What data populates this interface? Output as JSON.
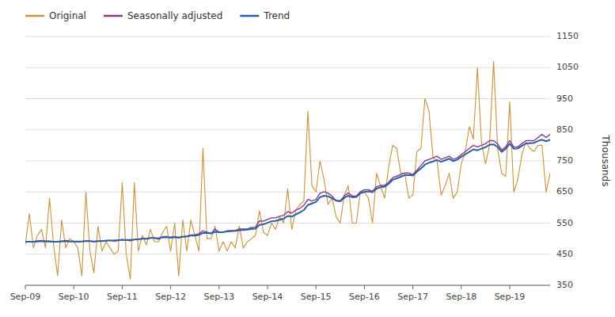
{
  "chart_data": {
    "type": "line",
    "ylabel": "Thousands",
    "categories": [
      "Sep-09",
      null,
      null,
      null,
      null,
      null,
      null,
      null,
      null,
      null,
      null,
      null,
      "Sep-10",
      null,
      null,
      null,
      null,
      null,
      null,
      null,
      null,
      null,
      null,
      null,
      "Sep-11",
      null,
      null,
      null,
      null,
      null,
      null,
      null,
      null,
      null,
      null,
      null,
      "Sep-12",
      null,
      null,
      null,
      null,
      null,
      null,
      null,
      null,
      null,
      null,
      null,
      "Sep-13",
      null,
      null,
      null,
      null,
      null,
      null,
      null,
      null,
      null,
      null,
      null,
      "Sep-14",
      null,
      null,
      null,
      null,
      null,
      null,
      null,
      null,
      null,
      null,
      null,
      "Sep-15",
      null,
      null,
      null,
      null,
      null,
      null,
      null,
      null,
      null,
      null,
      null,
      "Sep-16",
      null,
      null,
      null,
      null,
      null,
      null,
      null,
      null,
      null,
      null,
      null,
      "Sep-17",
      null,
      null,
      null,
      null,
      null,
      null,
      null,
      null,
      null,
      null,
      null,
      "Sep-18",
      null,
      null,
      null,
      null,
      null,
      null,
      null,
      null,
      null,
      null,
      null,
      "Sep-19",
      null,
      null,
      null,
      null,
      null,
      null,
      null,
      null,
      null,
      null
    ],
    "series": [
      {
        "name": "Original",
        "color": "#C8933A",
        "values": [
          480,
          580,
          470,
          510,
          530,
          470,
          630,
          480,
          380,
          560,
          470,
          500,
          490,
          470,
          380,
          650,
          460,
          390,
          540,
          460,
          490,
          470,
          450,
          460,
          680,
          450,
          370,
          680,
          460,
          510,
          480,
          530,
          490,
          490,
          520,
          540,
          460,
          550,
          380,
          560,
          460,
          560,
          510,
          460,
          790,
          500,
          500,
          540,
          460,
          490,
          460,
          490,
          470,
          540,
          470,
          490,
          500,
          510,
          590,
          520,
          510,
          550,
          530,
          570,
          550,
          660,
          530,
          590,
          610,
          620,
          910,
          670,
          650,
          750,
          690,
          610,
          630,
          570,
          550,
          640,
          670,
          550,
          550,
          650,
          650,
          630,
          550,
          710,
          670,
          630,
          730,
          800,
          790,
          710,
          710,
          630,
          640,
          780,
          790,
          950,
          910,
          760,
          750,
          640,
          670,
          710,
          630,
          650,
          740,
          780,
          860,
          820,
          1050,
          810,
          740,
          800,
          1070,
          790,
          710,
          700,
          940,
          650,
          690,
          770,
          810,
          790,
          780,
          800,
          800,
          650,
          710
        ]
      },
      {
        "name": "Seasonally adjusted",
        "color": "#8B3A8B",
        "values": [
          490,
          490,
          490,
          493,
          494,
          492,
          492,
          490,
          491,
          492,
          494,
          492,
          491,
          490,
          491,
          493,
          492,
          490,
          492,
          492,
          494,
          495,
          492,
          494,
          497,
          495,
          493,
          497,
          497,
          501,
          499,
          502,
          502,
          498,
          506,
          507,
          502,
          507,
          502,
          507,
          508,
          512,
          512,
          516,
          525,
          521,
          517,
          530,
          521,
          521,
          525,
          526,
          526,
          531,
          531,
          531,
          536,
          537,
          557,
          556,
          562,
          567,
          567,
          572,
          575,
          587,
          582,
          592,
          597,
          607,
          626,
          621,
          626,
          646,
          651,
          646,
          637,
          622,
          622,
          637,
          647,
          637,
          637,
          651,
          657,
          657,
          652,
          667,
          671,
          671,
          681,
          696,
          701,
          706,
          711,
          711,
          706,
          720,
          735,
          750,
          755,
          760,
          765,
          755,
          760,
          765,
          755,
          760,
          770,
          780,
          790,
          800,
          795,
          800,
          805,
          815,
          815,
          805,
          785,
          795,
          815,
          795,
          795,
          805,
          815,
          815,
          815,
          825,
          835,
          825,
          835
        ]
      },
      {
        "name": "Trend",
        "color": "#2B5EA7",
        "values": [
          490,
          490,
          490,
          491,
          492,
          491,
          491,
          490,
          490,
          491,
          492,
          491,
          491,
          491,
          491,
          492,
          492,
          491,
          492,
          492,
          493,
          494,
          494,
          495,
          496,
          496,
          496,
          497,
          498,
          500,
          500,
          502,
          502,
          501,
          504,
          505,
          504,
          505,
          504,
          506,
          507,
          510,
          510,
          512,
          518,
          518,
          517,
          522,
          521,
          521,
          523,
          524,
          525,
          527,
          528,
          529,
          531,
          532,
          544,
          546,
          551,
          556,
          557,
          561,
          564,
          573,
          571,
          578,
          584,
          592,
          608,
          613,
          618,
          633,
          638,
          636,
          630,
          622,
          620,
          631,
          638,
          633,
          634,
          646,
          650,
          652,
          649,
          661,
          665,
          667,
          676,
          689,
          694,
          699,
          704,
          705,
          703,
          715,
          726,
          738,
          744,
          748,
          753,
          747,
          752,
          757,
          749,
          754,
          763,
          771,
          779,
          787,
          784,
          789,
          794,
          802,
          803,
          795,
          779,
          789,
          805,
          789,
          790,
          798,
          806,
          807,
          808,
          814,
          818,
          813,
          818
        ]
      }
    ],
    "ylim": [
      350,
      1150
    ],
    "yticks": [
      350,
      450,
      550,
      650,
      750,
      850,
      950,
      1050,
      1150
    ],
    "grid": true,
    "legend": "top-left"
  }
}
